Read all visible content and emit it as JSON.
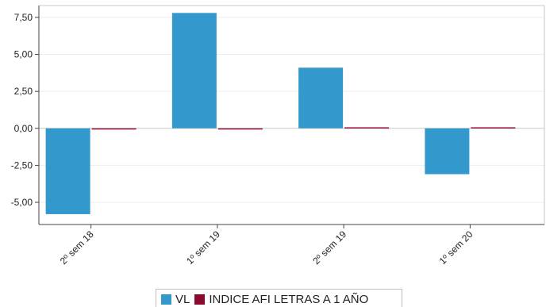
{
  "chart_data": {
    "type": "bar",
    "categories": [
      "2º sem 18",
      "1º sem 19",
      "2º sem 19",
      "1º sem 20"
    ],
    "series": [
      {
        "name": "VL",
        "values": [
          -5.8,
          7.8,
          4.1,
          -3.1
        ],
        "color": "#3399cc"
      },
      {
        "name": "INDICE AFI LETRAS A 1 AÑO",
        "values": [
          -0.08,
          -0.03,
          0.07,
          0.07
        ],
        "color": "#8b0a2e"
      }
    ],
    "yticks": [
      "7,50",
      "5,00",
      "2,50",
      "0,00",
      "-2,50",
      "-5,00"
    ],
    "ylim": [
      -6.5,
      8.3
    ],
    "grid": true,
    "legend_position": "bottom-center",
    "title": "",
    "xlabel": "",
    "ylabel": ""
  }
}
